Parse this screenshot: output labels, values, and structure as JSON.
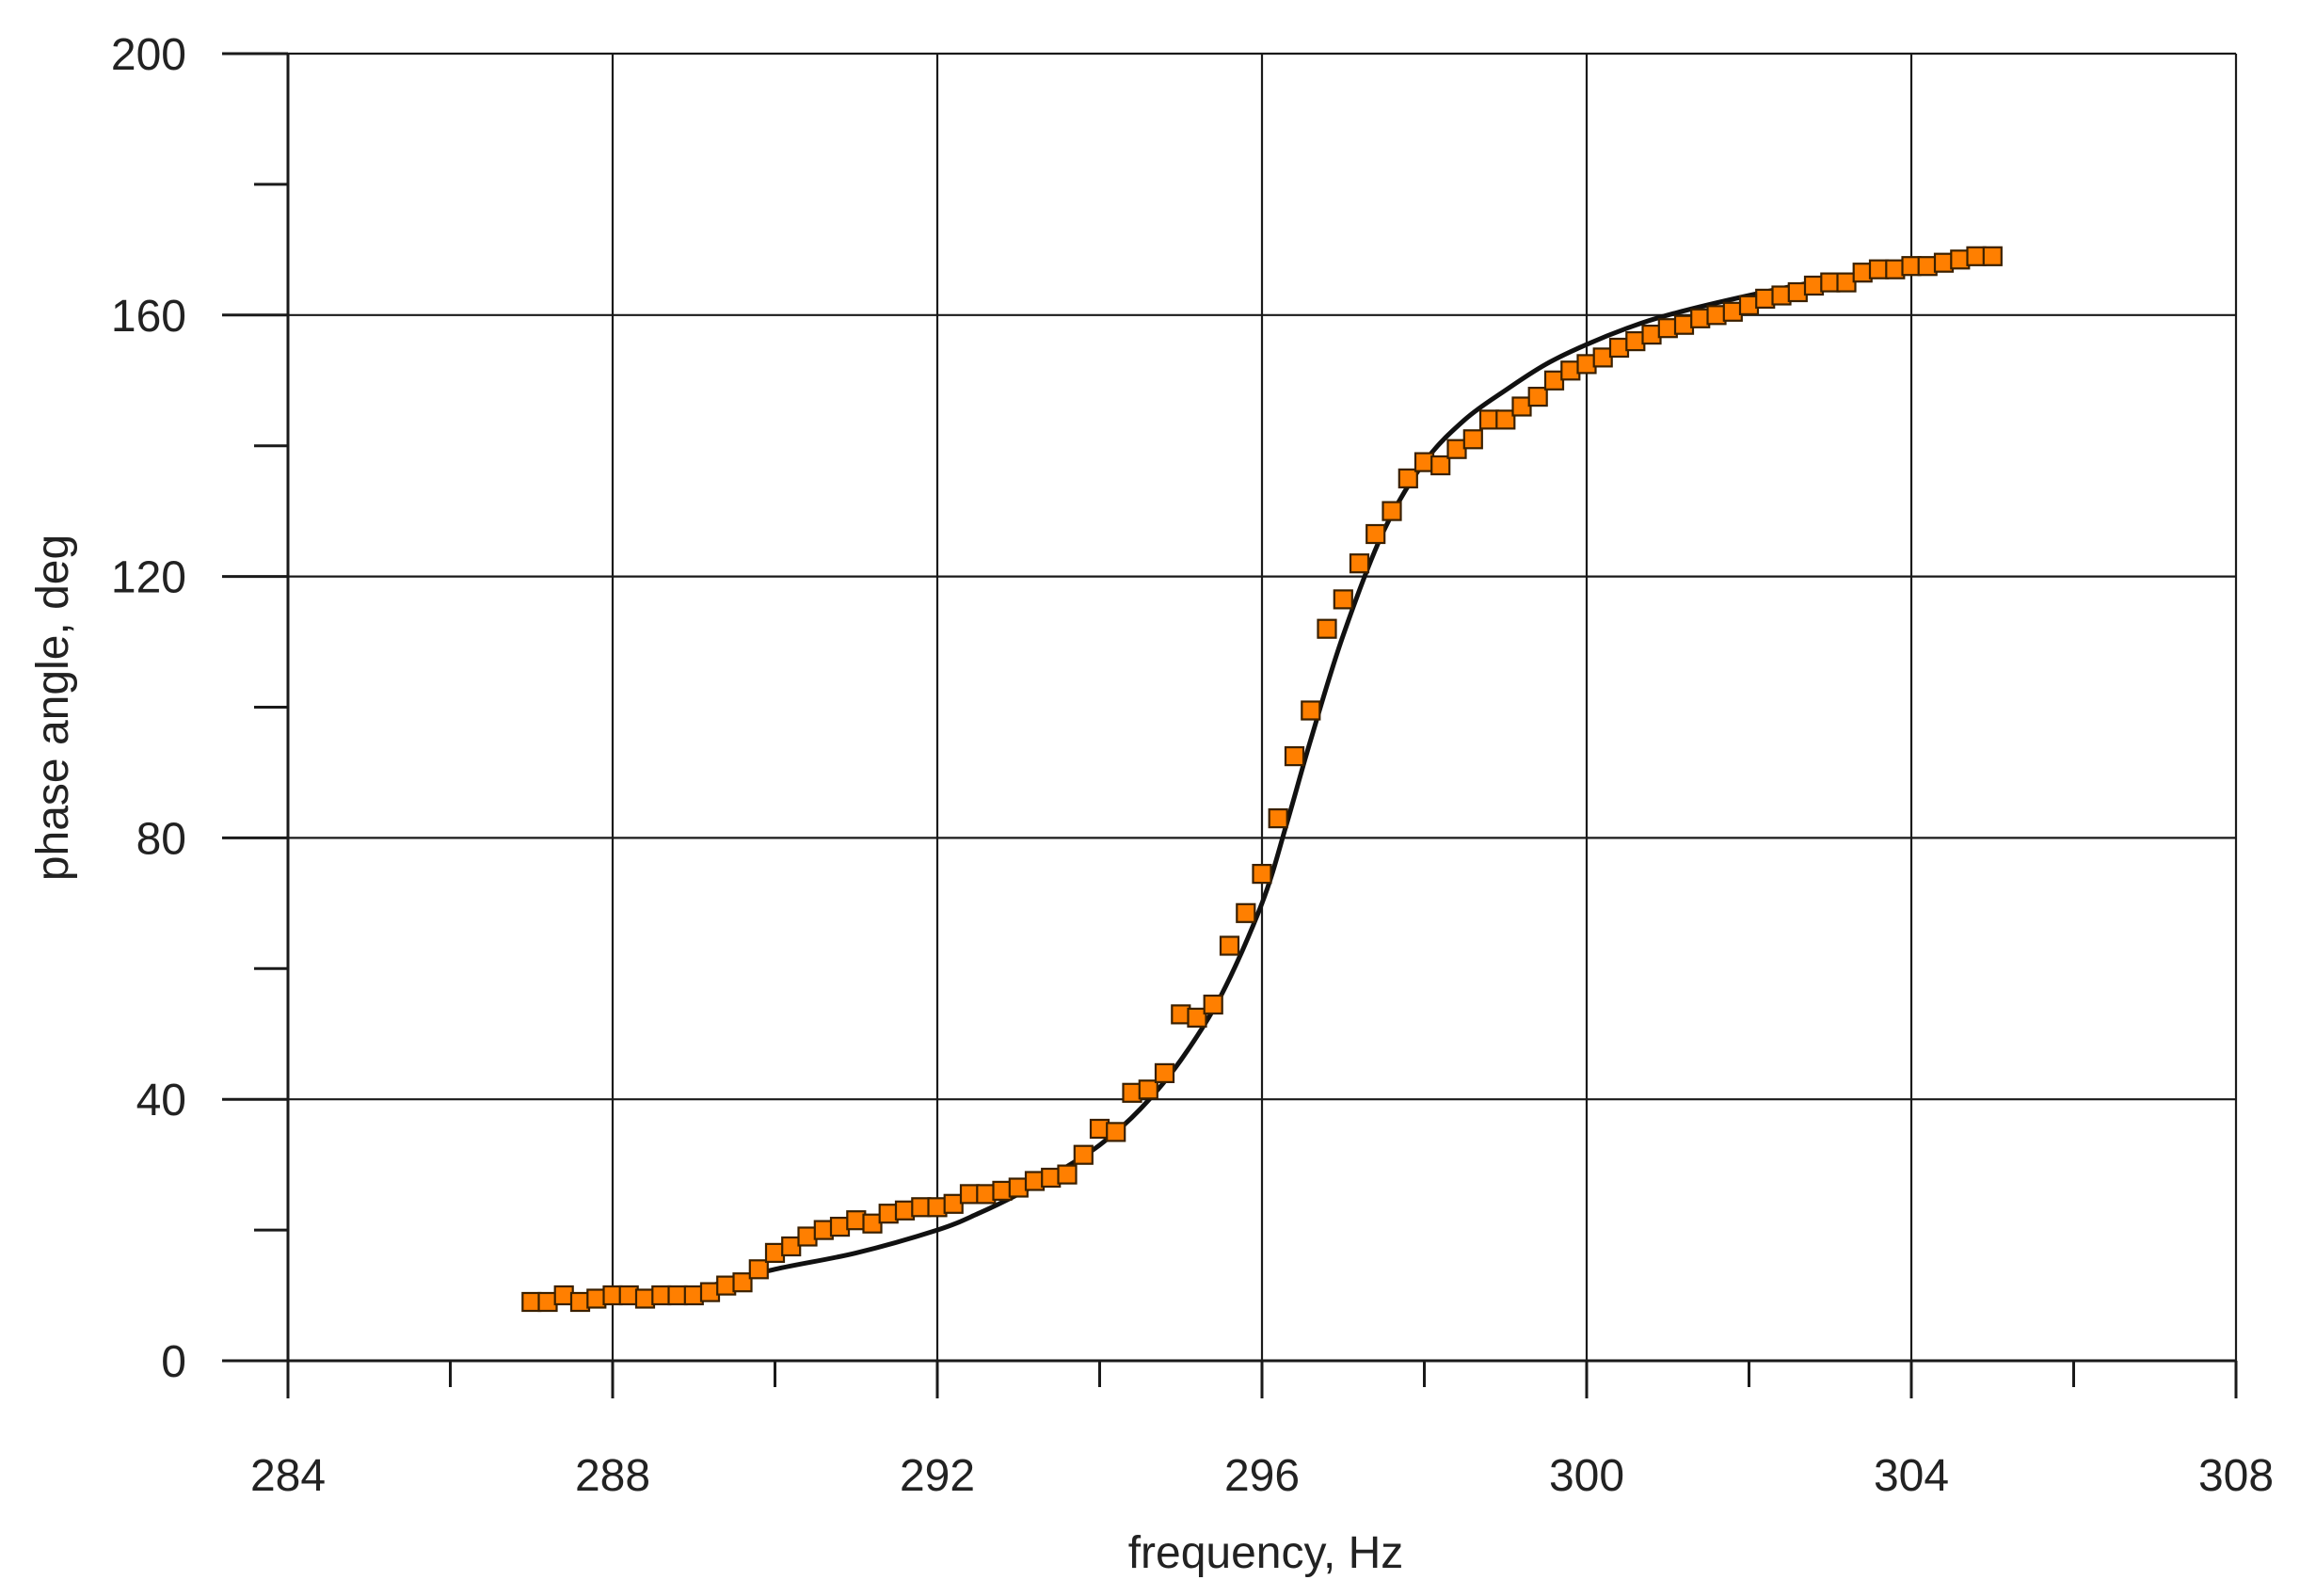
{
  "chart_data": {
    "type": "scatter",
    "title": "",
    "xlabel": "frequency, Hz",
    "ylabel": "phase angle, deg",
    "xlim": [
      284,
      308
    ],
    "ylim": [
      0,
      200
    ],
    "x_major_ticks": [
      284,
      288,
      292,
      296,
      300,
      304,
      308
    ],
    "x_minor_ticks": [
      286,
      290,
      294,
      298,
      302,
      306
    ],
    "y_major_ticks": [
      0,
      40,
      80,
      120,
      160,
      200
    ],
    "y_minor_ticks": [
      20,
      60,
      100,
      140,
      180
    ],
    "x_tick_labels": [
      "284",
      "288",
      "292",
      "296",
      "300",
      "304",
      "308"
    ],
    "y_tick_labels": [
      "0",
      "40",
      "80",
      "120",
      "160",
      "200"
    ],
    "grid": true,
    "legend": "none",
    "colors": {
      "marker_fill": "#ff7f00",
      "marker_edge": "#3a2000",
      "fit_line": "#111111",
      "grid": "#1a1a1a"
    },
    "series": [
      {
        "kind": "markers",
        "marker": "square",
        "points": [
          [
            287.0,
            9
          ],
          [
            287.2,
            9
          ],
          [
            287.4,
            10
          ],
          [
            287.6,
            9
          ],
          [
            287.8,
            9.5
          ],
          [
            288.0,
            10
          ],
          [
            288.2,
            10
          ],
          [
            288.4,
            9.5
          ],
          [
            288.6,
            10
          ],
          [
            288.8,
            10
          ],
          [
            289.0,
            10
          ],
          [
            289.2,
            10.5
          ],
          [
            289.4,
            11.5
          ],
          [
            289.6,
            12
          ],
          [
            289.8,
            14
          ],
          [
            290.0,
            16.5
          ],
          [
            290.2,
            17.5
          ],
          [
            290.4,
            19
          ],
          [
            290.6,
            20
          ],
          [
            290.8,
            20.5
          ],
          [
            291.0,
            21.5
          ],
          [
            291.2,
            21
          ],
          [
            291.4,
            22.5
          ],
          [
            291.6,
            23
          ],
          [
            291.8,
            23.5
          ],
          [
            292.0,
            23.5
          ],
          [
            292.2,
            24
          ],
          [
            292.4,
            25.5
          ],
          [
            292.6,
            25.5
          ],
          [
            292.8,
            26
          ],
          [
            293.0,
            26.5
          ],
          [
            293.2,
            27.5
          ],
          [
            293.4,
            28
          ],
          [
            293.6,
            28.5
          ],
          [
            293.8,
            31.5
          ],
          [
            294.0,
            35.5
          ],
          [
            294.2,
            35
          ],
          [
            294.4,
            41
          ],
          [
            294.6,
            41.5
          ],
          [
            294.8,
            44
          ],
          [
            295.0,
            53
          ],
          [
            295.2,
            52.5
          ],
          [
            295.4,
            54.5
          ],
          [
            295.6,
            63.5
          ],
          [
            295.8,
            68.5
          ],
          [
            296.0,
            74.5
          ],
          [
            296.2,
            83
          ],
          [
            296.4,
            92.5
          ],
          [
            296.6,
            99.5
          ],
          [
            296.8,
            112
          ],
          [
            297.0,
            116.5
          ],
          [
            297.2,
            122
          ],
          [
            297.4,
            126.5
          ],
          [
            297.6,
            130
          ],
          [
            297.8,
            135
          ],
          [
            298.0,
            137.5
          ],
          [
            298.2,
            137
          ],
          [
            298.4,
            139.5
          ],
          [
            298.6,
            141
          ],
          [
            298.8,
            144
          ],
          [
            299.0,
            144
          ],
          [
            299.2,
            146
          ],
          [
            299.4,
            147.5
          ],
          [
            299.6,
            150
          ],
          [
            299.8,
            151.5
          ],
          [
            300.0,
            152.5
          ],
          [
            300.2,
            153.5
          ],
          [
            300.4,
            155
          ],
          [
            300.6,
            156
          ],
          [
            300.8,
            157
          ],
          [
            301.0,
            158
          ],
          [
            301.2,
            158.5
          ],
          [
            301.4,
            159.5
          ],
          [
            301.6,
            160
          ],
          [
            301.8,
            160.5
          ],
          [
            302.0,
            161.5
          ],
          [
            302.2,
            162.5
          ],
          [
            302.4,
            163
          ],
          [
            302.6,
            163.5
          ],
          [
            302.8,
            164.5
          ],
          [
            303.0,
            165
          ],
          [
            303.2,
            165
          ],
          [
            303.4,
            166.5
          ],
          [
            303.6,
            167
          ],
          [
            303.8,
            167
          ],
          [
            304.0,
            167.5
          ],
          [
            304.2,
            167.5
          ],
          [
            304.4,
            168
          ],
          [
            304.6,
            168.5
          ],
          [
            304.8,
            169
          ],
          [
            305.0,
            169
          ]
        ]
      },
      {
        "kind": "line",
        "points": [
          [
            287.0,
            9.5
          ],
          [
            288.0,
            10
          ],
          [
            289.0,
            11
          ],
          [
            290.0,
            14
          ],
          [
            291.0,
            16.5
          ],
          [
            292.0,
            20
          ],
          [
            292.5,
            22.5
          ],
          [
            293.0,
            25.5
          ],
          [
            293.5,
            29
          ],
          [
            294.0,
            33
          ],
          [
            294.5,
            38.5
          ],
          [
            295.0,
            46
          ],
          [
            295.5,
            56
          ],
          [
            296.0,
            70
          ],
          [
            296.3,
            82
          ],
          [
            296.6,
            95
          ],
          [
            297.0,
            111
          ],
          [
            297.5,
            127
          ],
          [
            298.0,
            137.5
          ],
          [
            298.5,
            144
          ],
          [
            299.0,
            148.5
          ],
          [
            299.5,
            152.5
          ],
          [
            300.0,
            155.5
          ],
          [
            300.5,
            158
          ],
          [
            301.0,
            160
          ],
          [
            302.0,
            163
          ],
          [
            303.0,
            165.5
          ],
          [
            304.0,
            167.5
          ],
          [
            305.0,
            169
          ]
        ]
      }
    ]
  }
}
